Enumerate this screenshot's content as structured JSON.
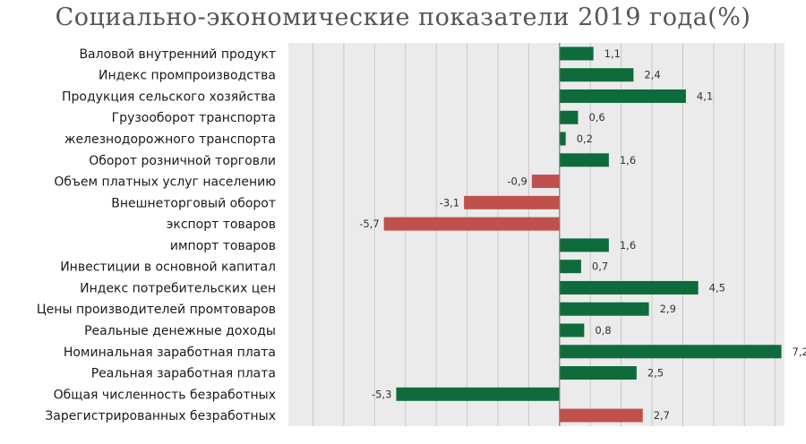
{
  "chart_data": {
    "type": "bar",
    "orientation": "horizontal",
    "title": "Социально-экономические показатели 2019 года(%)",
    "xlabel": "",
    "ylabel": "",
    "xlim": [
      -8.8,
      7.3
    ],
    "grid": true,
    "legend": "none",
    "colors": {
      "green": "#0e6b3c",
      "red": "#c0504d",
      "plot_bg": "#ebebeb",
      "grid": "#c8c8c8"
    },
    "categories": [
      "Валовой внутренний продукт",
      "Индекс промпроизводства",
      "Продукция сельского хозяйства",
      "Грузооборот транспорта",
      "железнодорожного транспорта",
      "Оборот розничной торговли",
      "Объем платных услуг населению",
      "Внешнеторговый оборот",
      "экспорт товаров",
      "импорт товаров",
      "Инвестиции в основной капитал",
      "Индекс потребительских цен",
      "Цены производителей промтоваров",
      "Реальные денежные доходы",
      "Номинальная заработная плата",
      "Реальная заработная плата",
      "Общая численность безработных",
      "Зарегистрированных безработных"
    ],
    "values": [
      1.1,
      2.4,
      4.1,
      0.6,
      0.2,
      1.6,
      -0.9,
      -3.1,
      -5.7,
      1.6,
      0.7,
      4.5,
      2.9,
      0.8,
      7.2,
      2.5,
      -5.3,
      2.7
    ],
    "value_labels": [
      "1,1",
      "2,4",
      "4,1",
      "0,6",
      "0,2",
      "1,6",
      "-0,9",
      "-3,1",
      "-5,7",
      "1,6",
      "0,7",
      "4,5",
      "2,9",
      "0,8",
      "7,2",
      "2,5",
      "-5,3",
      "2,7"
    ],
    "bar_colors": [
      "green",
      "green",
      "green",
      "green",
      "green",
      "green",
      "red",
      "red",
      "red",
      "green",
      "green",
      "green",
      "green",
      "green",
      "green",
      "green",
      "green",
      "red"
    ]
  }
}
